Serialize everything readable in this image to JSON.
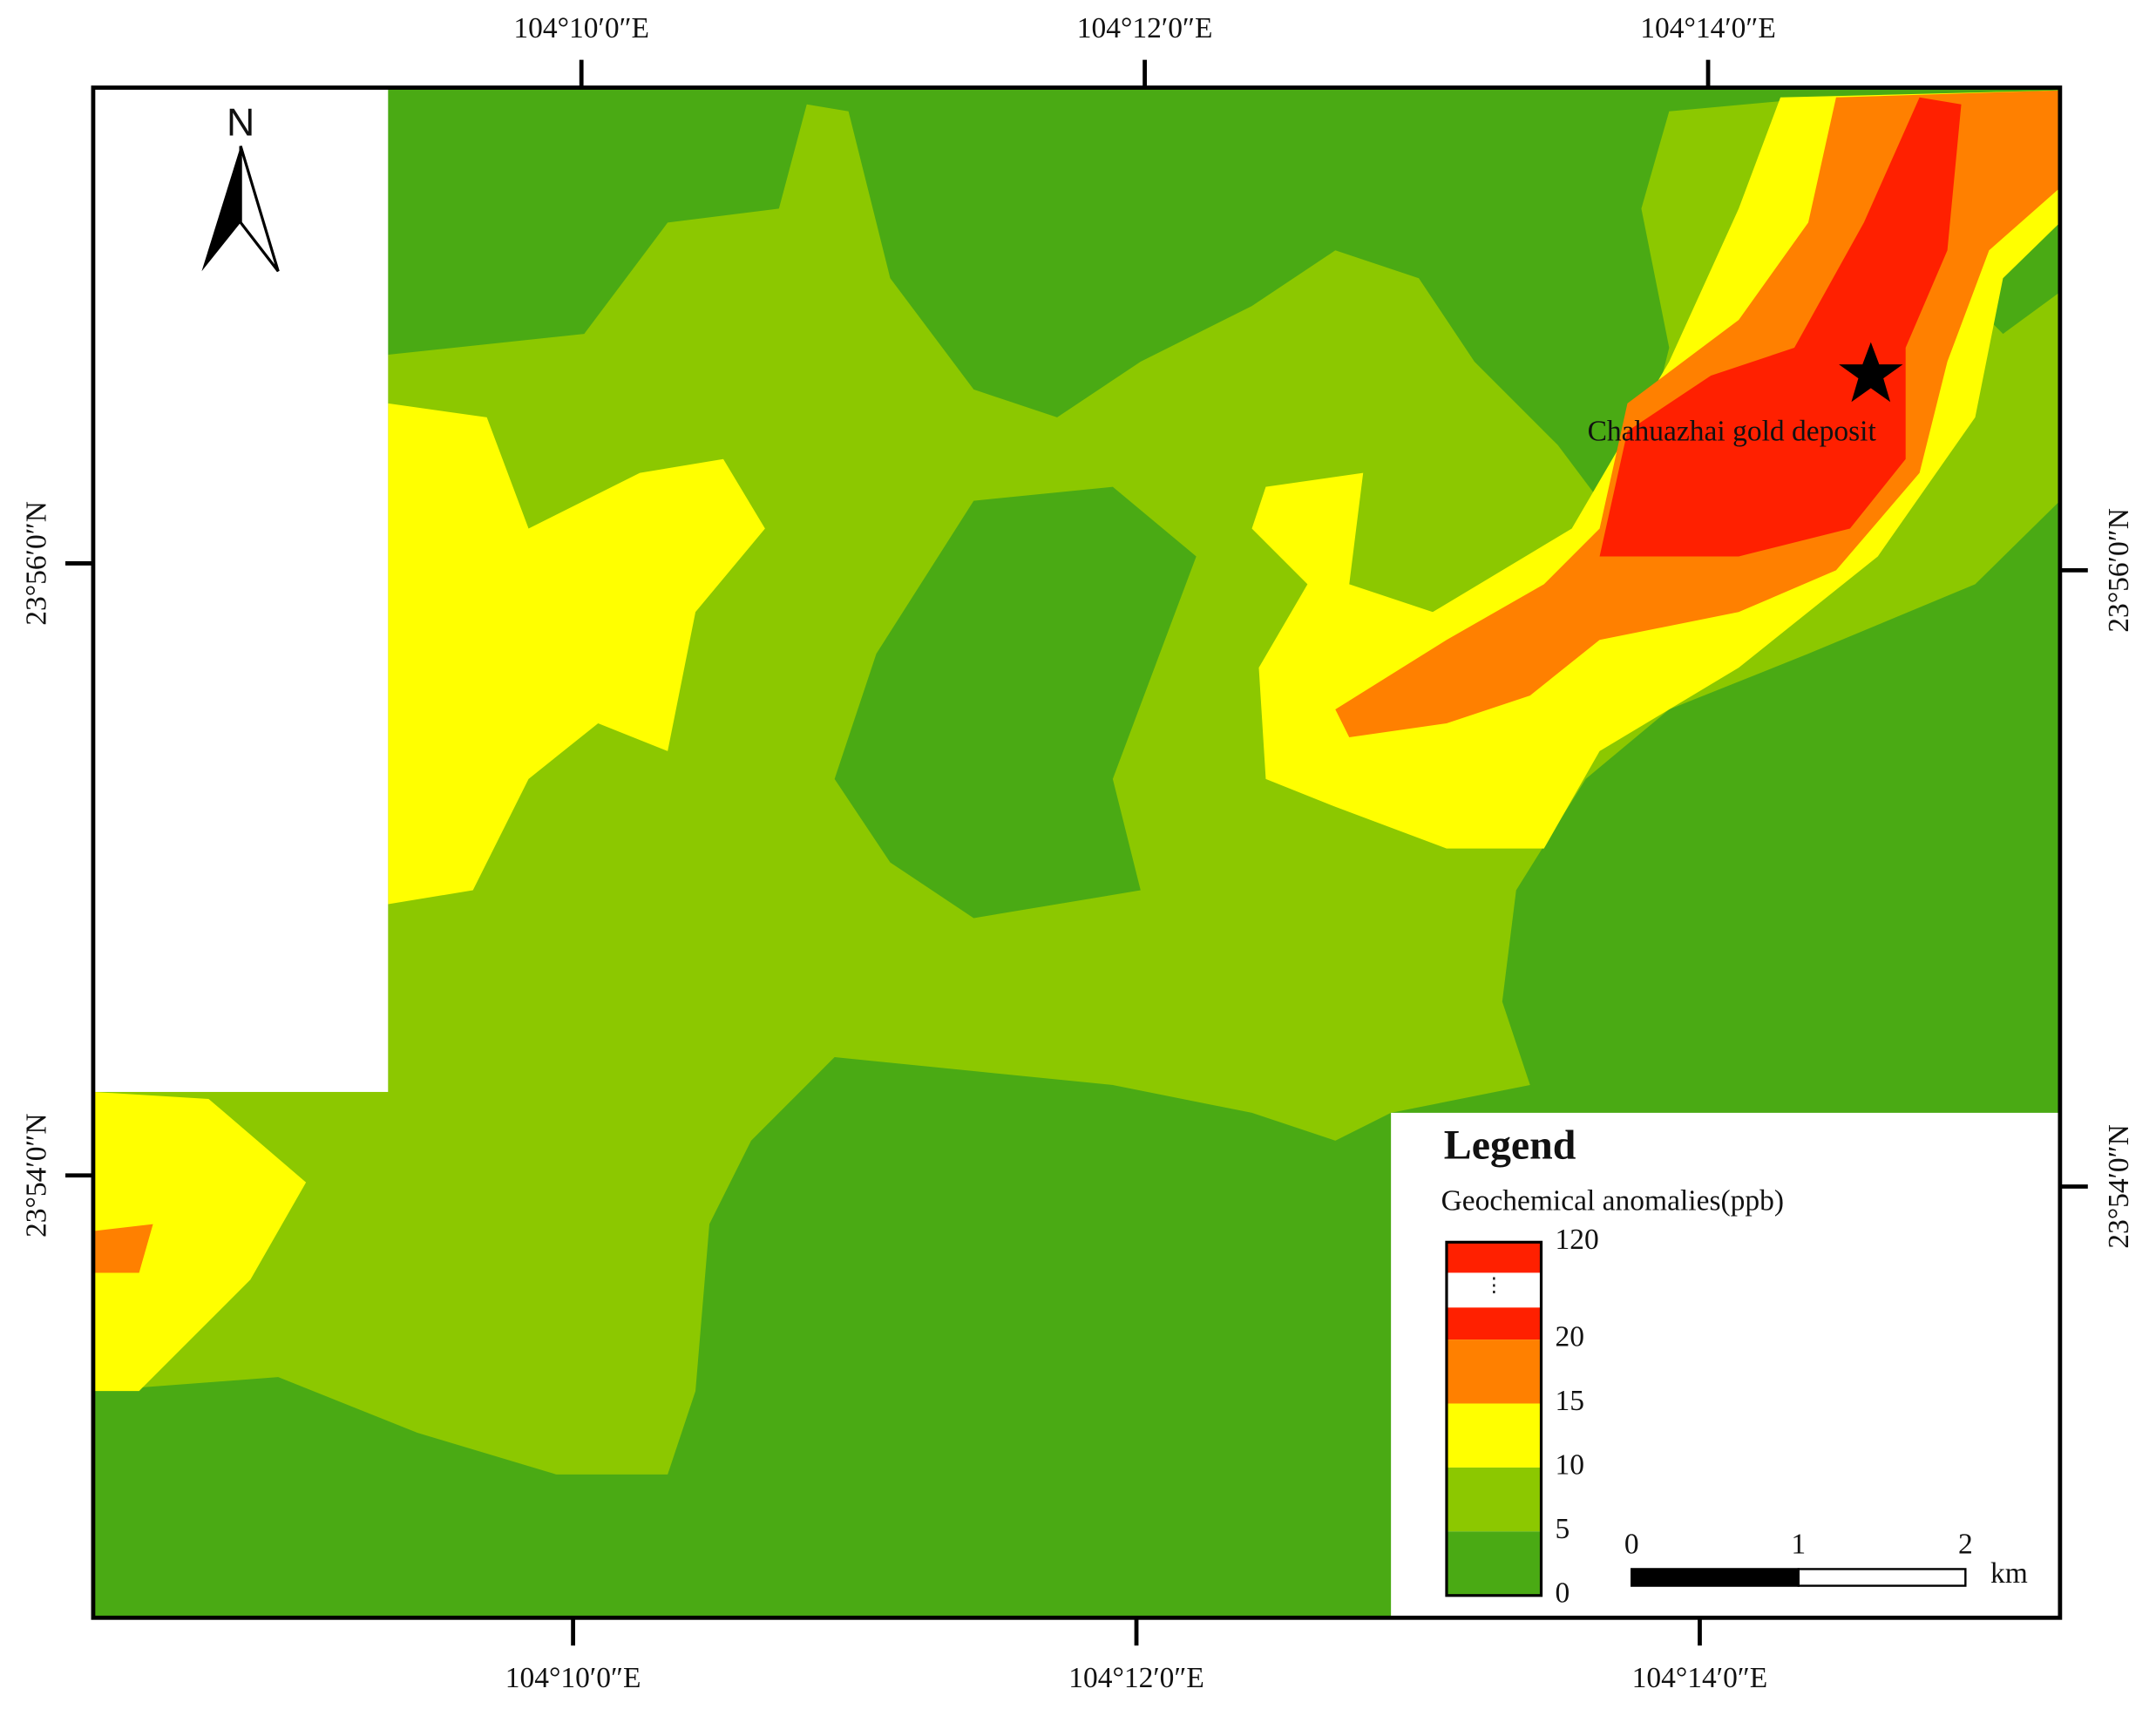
{
  "map": {
    "labels_top": [
      "104°10′0″E",
      "104°12′0″E",
      "104°14′0″E"
    ],
    "labels_bottom": [
      "104°10′0″E",
      "104°12′0″E",
      "104°14′0″E"
    ],
    "labels_left": [
      "23°56′0″N",
      "23°54′0″N"
    ],
    "labels_right": [
      "23°56′0″N",
      "23°54′0″N"
    ],
    "north": "N",
    "annotation": "Chahuazhai gold deposit"
  },
  "legend": {
    "title": "Legend",
    "subtitle": "Geochemical anomalies(ppb)",
    "breaks": [
      120,
      20,
      15,
      10,
      5,
      0
    ],
    "colors": [
      "#ff2000",
      "#ff8000",
      "#ffff00",
      "#8cc800",
      "#4aaa14"
    ]
  },
  "scale_bar": {
    "ticks": [
      0,
      1,
      2
    ],
    "unit": "km"
  }
}
